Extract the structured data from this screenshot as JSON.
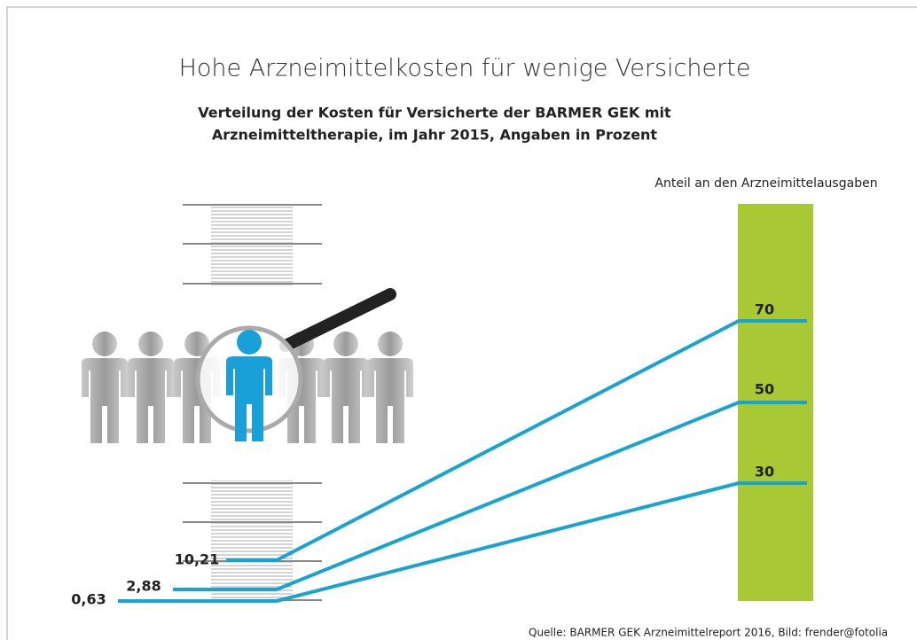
{
  "title": "Hohe Arzneimittelkosten für wenige Versicherte",
  "subtitle": [
    "Verteilung der Kosten für Versicherte der BARMER GEK mit",
    "Arzneimitteltherapie, im Jahr 2015, Angaben in Prozent"
  ],
  "right_label": "Anteil an den Arzneimittelausgaben",
  "pairs": [
    {
      "left": "10,21",
      "right": "70"
    },
    {
      "left": "2,88",
      "right": "50"
    },
    {
      "left": "0,63",
      "right": "30"
    }
  ],
  "source": "Quelle: BARMER GEK Arzneimittelreport 2016, Bild: frender@fotolia"
}
